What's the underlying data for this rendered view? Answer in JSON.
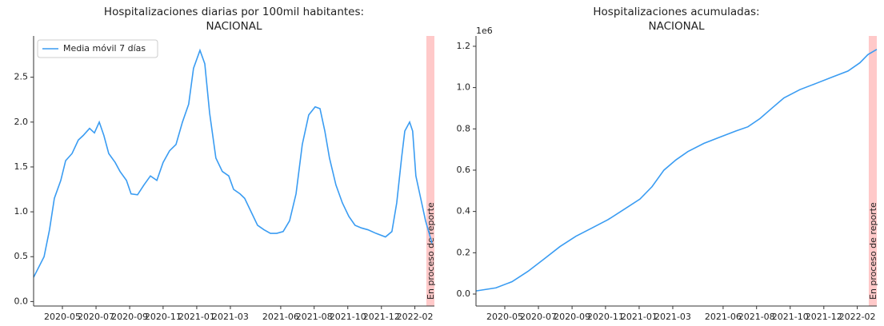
{
  "chart_data": [
    {
      "type": "line",
      "title": [
        "Hospitalizaciones diarias por 100mil habitantes:",
        "NACIONAL"
      ],
      "series": [
        {
          "name": "Media móvil 7 días",
          "color": "#3a9cf2",
          "x": [
            2020.19,
            2020.242,
            2020.269,
            2020.293,
            2020.325,
            2020.349,
            2020.381,
            2020.412,
            2020.436,
            2020.468,
            2020.492,
            2020.516,
            2020.539,
            2020.563,
            2020.595,
            2020.619,
            2020.651,
            2020.674,
            2020.706,
            2020.738,
            2020.77,
            2020.802,
            2020.833,
            2020.865,
            2020.897,
            2020.929,
            2020.96,
            2020.984,
            2021.016,
            2021.04,
            2021.064,
            2021.095,
            2021.127,
            2021.159,
            2021.183,
            2021.215,
            2021.238,
            2021.27,
            2021.302,
            2021.334,
            2021.366,
            2021.397,
            2021.429,
            2021.461,
            2021.493,
            2021.524,
            2021.556,
            2021.588,
            2021.612,
            2021.636,
            2021.659,
            2021.691,
            2021.723,
            2021.755,
            2021.786,
            2021.818,
            2021.85,
            2021.89,
            2021.937,
            2021.969,
            2021.993,
            2022.017,
            2022.033,
            2022.057,
            2022.072,
            2022.088,
            2022.112,
            2022.136,
            2022.168
          ],
          "values": [
            0.27,
            0.5,
            0.8,
            1.15,
            1.35,
            1.57,
            1.65,
            1.8,
            1.85,
            1.93,
            1.88,
            2.0,
            1.85,
            1.65,
            1.55,
            1.45,
            1.35,
            1.2,
            1.19,
            1.3,
            1.4,
            1.35,
            1.55,
            1.68,
            1.75,
            2.0,
            2.2,
            2.6,
            2.8,
            2.65,
            2.1,
            1.6,
            1.45,
            1.4,
            1.25,
            1.2,
            1.15,
            1.0,
            0.85,
            0.8,
            0.76,
            0.76,
            0.78,
            0.9,
            1.2,
            1.75,
            2.08,
            2.17,
            2.15,
            1.9,
            1.6,
            1.3,
            1.1,
            0.95,
            0.85,
            0.82,
            0.8,
            0.76,
            0.72,
            0.78,
            1.1,
            1.6,
            1.9,
            2.0,
            1.9,
            1.4,
            1.15,
            0.9,
            0.65
          ]
        }
      ],
      "xlim": [
        2020.19,
        2022.18
      ],
      "xticks": [
        {
          "value": 2020.333,
          "label": "2020-05"
        },
        {
          "value": 2020.5,
          "label": "2020-07"
        },
        {
          "value": 2020.667,
          "label": "2020-09"
        },
        {
          "value": 2020.833,
          "label": "2020-11"
        },
        {
          "value": 2021.0,
          "label": "2021-01"
        },
        {
          "value": 2021.167,
          "label": "2021-03"
        },
        {
          "value": 2021.417,
          "label": "2021-06"
        },
        {
          "value": 2021.583,
          "label": "2021-08"
        },
        {
          "value": 2021.75,
          "label": "2021-10"
        },
        {
          "value": 2021.917,
          "label": "2021-12"
        },
        {
          "value": 2022.083,
          "label": "2022-02"
        }
      ],
      "ylim": [
        -0.05,
        2.96
      ],
      "yticks": [
        {
          "value": 0,
          "label": "0.0"
        },
        0.5,
        {
          "value": 1,
          "label": "1.0"
        },
        1.5,
        {
          "value": 2,
          "label": "2.0"
        },
        2.5
      ],
      "highlight_span": [
        2022.14,
        2022.18
      ],
      "highlight_color": "#ffc9c9",
      "annotation": "En proceso de reporte",
      "legend": "upper left"
    },
    {
      "type": "line",
      "title": [
        "Hospitalizaciones acumuladas:",
        "NACIONAL"
      ],
      "offset_label": "1e6",
      "series": [
        {
          "color": "#3a9cf2",
          "x": [
            2020.19,
            2020.289,
            2020.369,
            2020.448,
            2020.528,
            2020.607,
            2020.686,
            2020.766,
            2020.845,
            2020.925,
            2021.004,
            2021.064,
            2021.123,
            2021.183,
            2021.242,
            2021.322,
            2021.401,
            2021.481,
            2021.54,
            2021.6,
            2021.659,
            2021.719,
            2021.798,
            2021.878,
            2021.957,
            2022.037,
            2022.096,
            2022.136,
            2022.18
          ],
          "values": [
            0.015,
            0.03,
            0.06,
            0.11,
            0.17,
            0.23,
            0.28,
            0.32,
            0.36,
            0.41,
            0.46,
            0.52,
            0.6,
            0.65,
            0.69,
            0.73,
            0.76,
            0.79,
            0.81,
            0.85,
            0.9,
            0.95,
            0.99,
            1.02,
            1.05,
            1.08,
            1.12,
            1.16,
            1.185
          ]
        }
      ],
      "xlim": [
        2020.19,
        2022.18
      ],
      "xticks": [
        {
          "value": 2020.333,
          "label": "2020-05"
        },
        {
          "value": 2020.5,
          "label": "2020-07"
        },
        {
          "value": 2020.667,
          "label": "2020-09"
        },
        {
          "value": 2020.833,
          "label": "2020-11"
        },
        {
          "value": 2021.0,
          "label": "2021-01"
        },
        {
          "value": 2021.167,
          "label": "2021-03"
        },
        {
          "value": 2021.417,
          "label": "2021-06"
        },
        {
          "value": 2021.583,
          "label": "2021-08"
        },
        {
          "value": 2021.75,
          "label": "2021-10"
        },
        {
          "value": 2021.917,
          "label": "2021-12"
        },
        {
          "value": 2022.083,
          "label": "2022-02"
        }
      ],
      "ylim": [
        -0.058,
        1.25
      ],
      "yticks": [
        {
          "value": 0,
          "label": "0.0"
        },
        0.2,
        0.4,
        0.6,
        0.8,
        {
          "value": 1,
          "label": "1.0"
        },
        1.2
      ],
      "highlight_span": [
        2022.14,
        2022.18
      ],
      "highlight_color": "#ffc9c9",
      "annotation": "En proceso de reporte"
    }
  ]
}
